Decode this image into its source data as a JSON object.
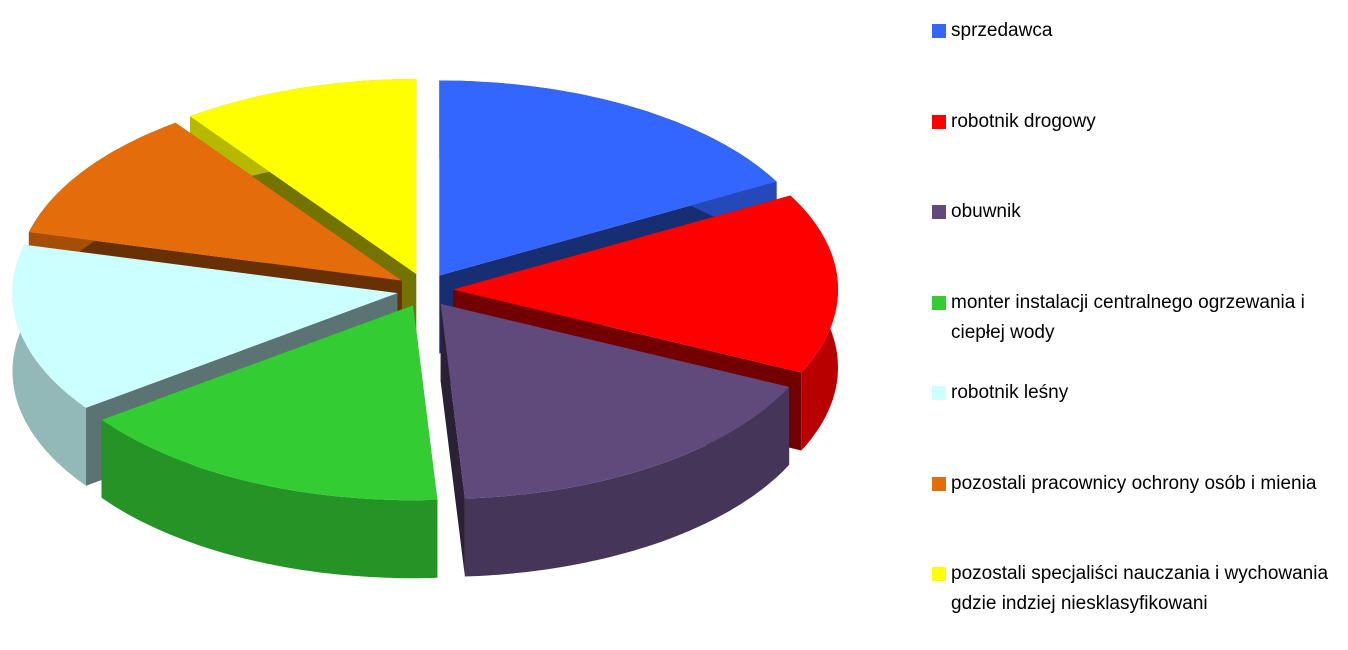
{
  "chart_data": {
    "type": "pie",
    "categories": [
      "sprzedawca",
      "robotnik drogowy",
      "obuwnik",
      "monter instalacji centralnego ogrzewania i ciepłej wody",
      "robotnik leśny",
      "pozostali pracownicy ochrony osób i mienia",
      "pozostali specjaliści nauczania i wychowania gdzie indziej niesklasyfikowani"
    ],
    "values": [
      17,
      15,
      17,
      16,
      14,
      11,
      10
    ],
    "colors": [
      "#3366ff",
      "#ff0000",
      "#604a7b",
      "#33cc33",
      "#ccffff",
      "#e46c0a",
      "#ffff00"
    ]
  }
}
